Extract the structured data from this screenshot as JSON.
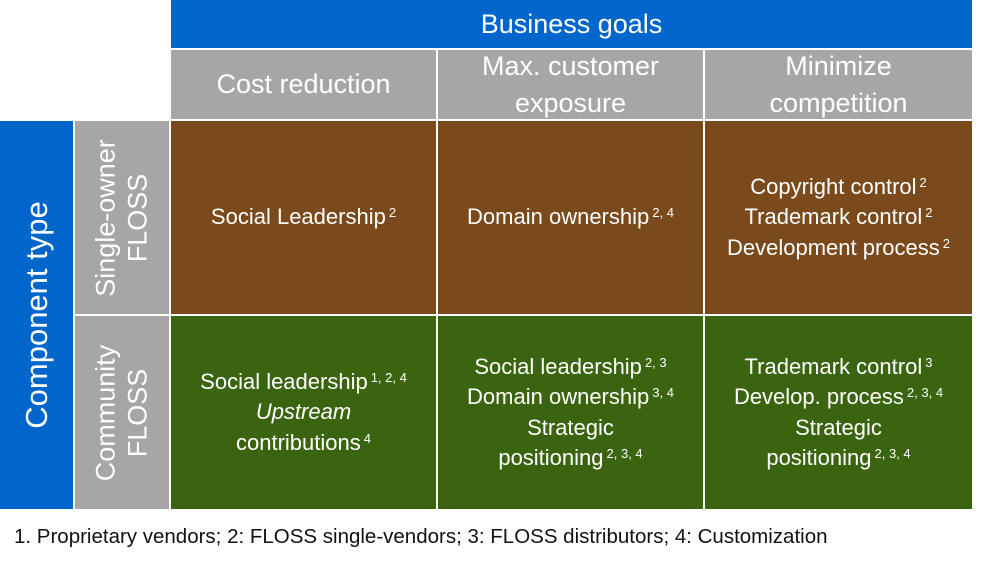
{
  "header": {
    "title": "Business goals",
    "goals": [
      [
        "Cost reduction"
      ],
      [
        "Max. customer",
        "exposure"
      ],
      [
        "Minimize",
        "competition"
      ]
    ]
  },
  "side": {
    "title": "Component type",
    "rows": [
      [
        "Single-owner",
        "FLOSS"
      ],
      [
        "Community",
        "FLOSS"
      ]
    ]
  },
  "cells": {
    "single_owner": [
      [
        {
          "text": "Social Leadership",
          "sup": "2"
        }
      ],
      [
        {
          "text": "Domain ownership",
          "sup": "2, 4"
        }
      ],
      [
        {
          "text": "Copyright control",
          "sup": "2"
        },
        {
          "text": "Trademark control",
          "sup": "2"
        },
        {
          "text": "Development process",
          "sup": "2"
        }
      ]
    ],
    "community": [
      [
        {
          "text": "Social leadership",
          "sup": "1, 2, 4"
        },
        {
          "text": "Upstream",
          "sup": "",
          "italic": true
        },
        {
          "text": "contributions",
          "sup": "4"
        }
      ],
      [
        {
          "text": "Social leadership",
          "sup": "2, 3"
        },
        {
          "text": "Domain ownership",
          "sup": "3, 4"
        },
        {
          "text": "Strategic",
          "sup": ""
        },
        {
          "text": "positioning",
          "sup": "2, 3, 4"
        }
      ],
      [
        {
          "text": "Trademark control",
          "sup": "3"
        },
        {
          "text": "Develop. process",
          "sup": "2, 3, 4"
        },
        {
          "text": "Strategic",
          "sup": ""
        },
        {
          "text": "positioning",
          "sup": "2, 3, 4"
        }
      ]
    ]
  },
  "footnote": "1. Proprietary vendors; 2: FLOSS single-vendors; 3: FLOSS distributors; 4: Customization",
  "colors": {
    "header_blue": "#0066cc",
    "goal_gray": "#a6a6a6",
    "single_owner_brown": "#7a4a1c",
    "community_green": "#3b6410"
  }
}
